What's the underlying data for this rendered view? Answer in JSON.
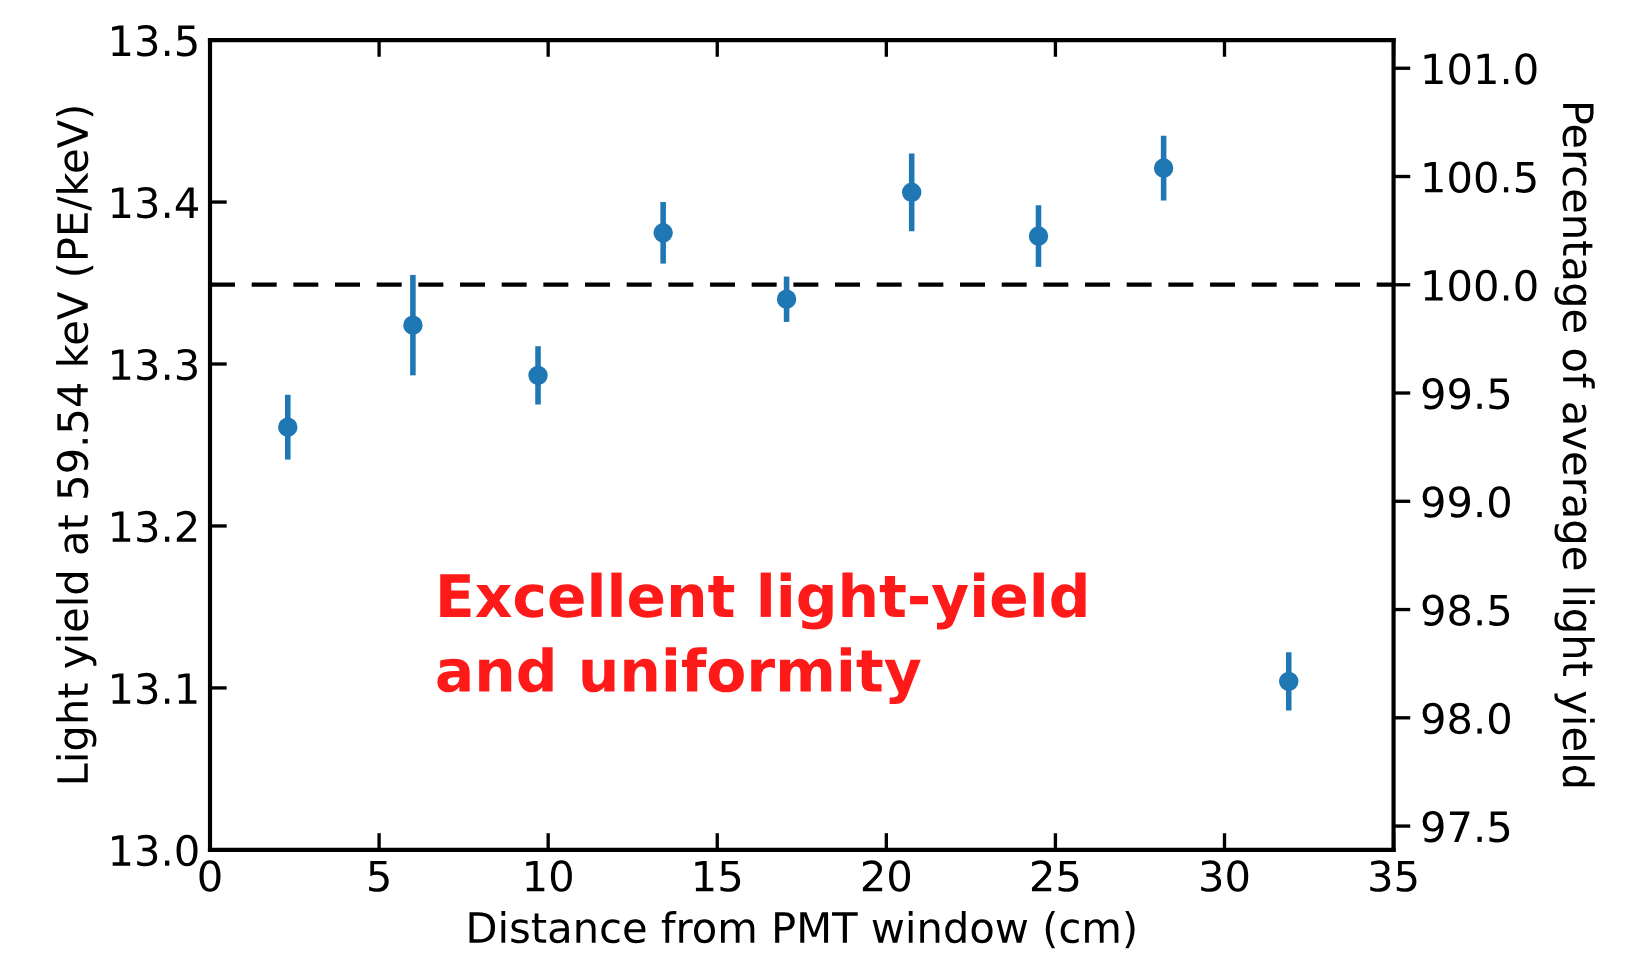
{
  "chart_data": {
    "type": "scatter",
    "xlabel": "Distance from PMT window (cm)",
    "ylabel": "Light yield at 59.54 keV (PE/keV)",
    "y2label": "Percentage of average light yield",
    "x": [
      2.3,
      6.0,
      9.7,
      13.4,
      17.05,
      20.75,
      24.5,
      28.2,
      31.9
    ],
    "series": [
      {
        "color": "#1f77b4",
        "values": [
          13.261,
          13.324,
          13.293,
          13.381,
          13.34,
          13.406,
          13.379,
          13.421,
          13.104
        ],
        "errors": [
          0.02,
          0.031,
          0.018,
          0.019,
          0.014,
          0.024,
          0.019,
          0.02,
          0.018
        ]
      }
    ],
    "xlim": [
      0,
      35
    ],
    "xticks": [
      0,
      5,
      10,
      15,
      20,
      25,
      30,
      35
    ],
    "ylim": [
      13.0,
      13.5
    ],
    "yticks": [
      {
        "value": 13.0,
        "label": "13.0"
      },
      {
        "value": 13.1,
        "label": "13.1"
      },
      {
        "value": 13.2,
        "label": "13.2"
      },
      {
        "value": 13.3,
        "label": "13.3"
      },
      {
        "value": 13.4,
        "label": "13.4"
      },
      {
        "value": 13.5,
        "label": "13.5"
      }
    ],
    "y2lim": [
      97.39,
      101.13
    ],
    "y2ticks": [
      97.5,
      {
        "value": 98.0,
        "label": "98.0"
      },
      98.5,
      {
        "value": 99.0,
        "label": "99.0"
      },
      99.5,
      {
        "value": 100.0,
        "label": "100.0"
      },
      100.5,
      {
        "value": 101.0,
        "label": "101.0"
      }
    ],
    "ref_lines": [
      {
        "axis": "y",
        "value": 13.349,
        "color": "#000000",
        "line_style": "dashed"
      }
    ],
    "annotations": [
      "Excellent light-yield\nand uniformity"
    ],
    "marker": "circle",
    "grid": false,
    "legend": false
  }
}
